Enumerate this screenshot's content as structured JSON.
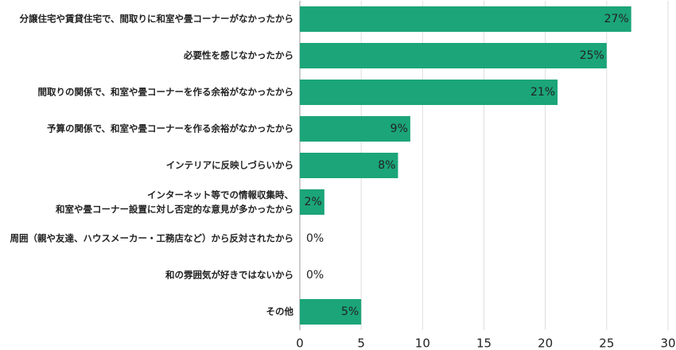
{
  "chart_data": {
    "type": "bar",
    "orientation": "horizontal",
    "categories": [
      "分譲住宅や賃貸住宅で、間取りに和室や畳コーナーがなかったから",
      "必要性を感じなかったから",
      "間取りの関係で、和室や畳コーナーを作る余裕がなかったから",
      "予算の関係で、和室や畳コーナーを作る余裕がなかったから",
      "インテリアに反映しづらいから",
      "インターネット等での情報収集時、\n和室や畳コーナー設置に対し否定的な意見が多かったから",
      "周囲（親や友達、ハウスメーカー・工務店など）から反対されたから",
      "和の雰囲気が好きではないから",
      "その他"
    ],
    "values": [
      27,
      25,
      21,
      9,
      8,
      2,
      0,
      0,
      5
    ],
    "value_labels": [
      "27%",
      "25%",
      "21%",
      "9%",
      "8%",
      "2%",
      "0%",
      "0%",
      "5%"
    ],
    "color": "#1ba578",
    "xlim": [
      0,
      30
    ],
    "xticks": [
      0,
      5,
      10,
      15,
      20,
      25,
      30
    ],
    "grid": true
  }
}
